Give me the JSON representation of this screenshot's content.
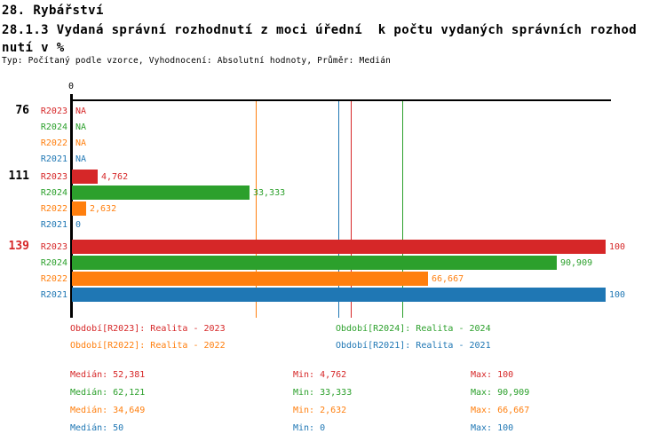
{
  "header": {
    "line1": "28. Rybářství",
    "line2": "28.1.3 Vydaná správní rozhodnutí z moci úřední  k počtu vydaných správních rozhod",
    "line3": "nutí v %",
    "meta": "Typ: Počítaný podle vzorce, Vyhodnocení: Absolutní hodnoty, Průměr: Medián"
  },
  "chart_data": {
    "type": "bar",
    "orientation": "horizontal",
    "title": "28.1.3 Vydaná správní rozhodnutí z moci úřední k počtu vydaných správních rozhodnutí v %",
    "value_unit": "%",
    "xlim": [
      0,
      100
    ],
    "axis_tick_label": "0",
    "grid": false,
    "series": [
      {
        "name": "R2023",
        "color": "#d62728",
        "median": 52.381
      },
      {
        "name": "R2024",
        "color": "#2ca02c",
        "median": 62.121
      },
      {
        "name": "R2022",
        "color": "#ff7f0e",
        "median": 34.649
      },
      {
        "name": "R2021",
        "color": "#1f77b4",
        "median": 50
      }
    ],
    "groups": [
      {
        "id": "76",
        "id_color": "#000000",
        "values": [
          null,
          null,
          null,
          null
        ],
        "labels": [
          "NA",
          "NA",
          "NA",
          "NA"
        ]
      },
      {
        "id": "111",
        "id_color": "#000000",
        "values": [
          4.762,
          33.333,
          2.632,
          0
        ],
        "labels": [
          "4,762",
          "33,333",
          "2,632",
          "0"
        ]
      },
      {
        "id": "139",
        "id_color": "#d62728",
        "values": [
          100,
          90.909,
          66.667,
          100
        ],
        "labels": [
          "100",
          "90,909",
          "66,667",
          "100"
        ]
      }
    ]
  },
  "legend": [
    {
      "label": "Období[R2023]: Realita - 2023",
      "color": "#d62728"
    },
    {
      "label": "Období[R2024]: Realita - 2024",
      "color": "#2ca02c"
    },
    {
      "label": "Období[R2022]: Realita - 2022",
      "color": "#ff7f0e"
    },
    {
      "label": "Období[R2021]: Realita - 2021",
      "color": "#1f77b4"
    }
  ],
  "stats": [
    {
      "color": "#d62728",
      "median": "Medián: 52,381",
      "min": "Min: 4,762",
      "max": "Max: 100"
    },
    {
      "color": "#2ca02c",
      "median": "Medián: 62,121",
      "min": "Min: 33,333",
      "max": "Max: 90,909"
    },
    {
      "color": "#ff7f0e",
      "median": "Medián: 34,649",
      "min": "Min: 2,632",
      "max": "Max: 66,667"
    },
    {
      "color": "#1f77b4",
      "median": "Medián: 50",
      "min": "Min: 0",
      "max": "Max: 100"
    }
  ]
}
